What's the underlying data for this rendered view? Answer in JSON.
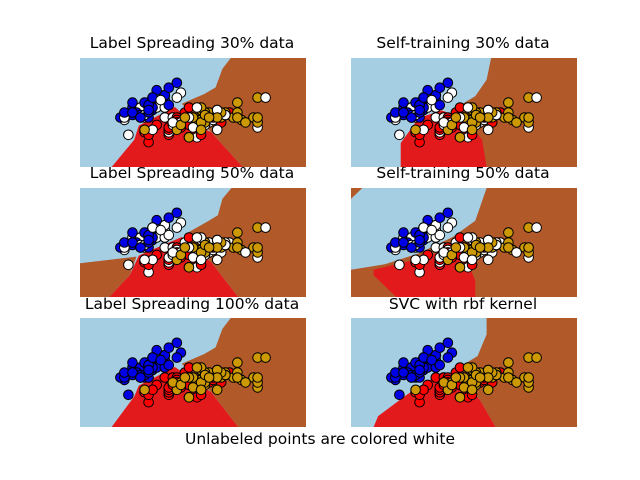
{
  "caption": "Unlabeled points are colored white",
  "colors": {
    "region_0": "#a6cee3",
    "region_1": "#e31a1c",
    "region_2": "#b15928",
    "point_unlabeled": "#ffffff",
    "point_0": "#0000e6",
    "point_1": "#ff0000",
    "point_2": "#cc9900"
  },
  "chart_data": {
    "type": "scatter",
    "xlim": [
      3.3,
      8.9
    ],
    "ylim": [
      1.0,
      5.4
    ],
    "grid": false,
    "axes_visible": false,
    "points": [
      [
        5.1,
        3.5
      ],
      [
        4.9,
        3.0
      ],
      [
        4.7,
        3.2
      ],
      [
        4.6,
        3.1
      ],
      [
        5.0,
        3.6
      ],
      [
        5.4,
        3.9
      ],
      [
        4.6,
        3.4
      ],
      [
        5.0,
        3.4
      ],
      [
        4.4,
        2.9
      ],
      [
        4.9,
        3.1
      ],
      [
        5.4,
        3.7
      ],
      [
        4.8,
        3.4
      ],
      [
        4.8,
        3.0
      ],
      [
        4.3,
        3.0
      ],
      [
        5.8,
        4.0
      ],
      [
        5.7,
        4.4
      ],
      [
        5.4,
        3.9
      ],
      [
        5.1,
        3.5
      ],
      [
        5.7,
        3.8
      ],
      [
        5.1,
        3.8
      ],
      [
        5.4,
        3.4
      ],
      [
        5.1,
        3.7
      ],
      [
        4.6,
        3.6
      ],
      [
        5.1,
        3.3
      ],
      [
        4.8,
        3.4
      ],
      [
        5.0,
        3.0
      ],
      [
        5.0,
        3.4
      ],
      [
        5.2,
        3.5
      ],
      [
        5.2,
        3.4
      ],
      [
        4.7,
        3.2
      ],
      [
        4.8,
        3.1
      ],
      [
        5.4,
        3.4
      ],
      [
        5.2,
        4.1
      ],
      [
        5.5,
        4.2
      ],
      [
        4.9,
        3.1
      ],
      [
        5.0,
        3.2
      ],
      [
        5.5,
        3.5
      ],
      [
        4.9,
        3.6
      ],
      [
        4.4,
        3.0
      ],
      [
        5.1,
        3.4
      ],
      [
        5.0,
        3.5
      ],
      [
        4.5,
        2.3
      ],
      [
        4.4,
        3.2
      ],
      [
        5.0,
        3.5
      ],
      [
        5.1,
        3.8
      ],
      [
        4.8,
        3.0
      ],
      [
        5.1,
        3.8
      ],
      [
        4.6,
        3.2
      ],
      [
        5.3,
        3.7
      ],
      [
        5.0,
        3.3
      ],
      [
        7.0,
        3.2
      ],
      [
        6.4,
        3.2
      ],
      [
        6.9,
        3.1
      ],
      [
        5.5,
        2.3
      ],
      [
        6.5,
        2.8
      ],
      [
        5.7,
        2.8
      ],
      [
        6.3,
        3.3
      ],
      [
        4.9,
        2.4
      ],
      [
        6.6,
        2.9
      ],
      [
        5.2,
        2.7
      ],
      [
        5.0,
        2.0
      ],
      [
        5.9,
        3.0
      ],
      [
        6.0,
        2.2
      ],
      [
        6.1,
        2.9
      ],
      [
        5.6,
        2.9
      ],
      [
        6.7,
        3.1
      ],
      [
        5.6,
        3.0
      ],
      [
        5.8,
        2.7
      ],
      [
        6.2,
        2.2
      ],
      [
        5.6,
        2.5
      ],
      [
        5.9,
        3.2
      ],
      [
        6.1,
        2.8
      ],
      [
        6.3,
        2.5
      ],
      [
        6.1,
        2.8
      ],
      [
        6.4,
        2.9
      ],
      [
        6.6,
        3.0
      ],
      [
        6.8,
        2.8
      ],
      [
        6.7,
        3.0
      ],
      [
        6.0,
        2.9
      ],
      [
        5.7,
        2.6
      ],
      [
        5.5,
        2.4
      ],
      [
        5.5,
        2.4
      ],
      [
        5.8,
        2.7
      ],
      [
        6.0,
        2.7
      ],
      [
        5.4,
        3.0
      ],
      [
        6.0,
        3.4
      ],
      [
        6.7,
        3.1
      ],
      [
        6.3,
        2.3
      ],
      [
        5.6,
        3.0
      ],
      [
        5.5,
        2.5
      ],
      [
        5.5,
        2.6
      ],
      [
        6.1,
        3.0
      ],
      [
        5.8,
        2.6
      ],
      [
        5.0,
        2.3
      ],
      [
        5.6,
        2.7
      ],
      [
        5.7,
        3.0
      ],
      [
        5.7,
        2.9
      ],
      [
        6.2,
        2.9
      ],
      [
        5.1,
        2.5
      ],
      [
        5.7,
        2.8
      ],
      [
        6.3,
        3.3
      ],
      [
        5.8,
        2.7
      ],
      [
        7.1,
        3.0
      ],
      [
        6.3,
        2.9
      ],
      [
        6.5,
        3.0
      ],
      [
        7.6,
        3.0
      ],
      [
        4.9,
        2.5
      ],
      [
        7.3,
        2.9
      ],
      [
        6.7,
        2.5
      ],
      [
        7.2,
        3.6
      ],
      [
        6.5,
        3.2
      ],
      [
        6.4,
        2.7
      ],
      [
        6.8,
        3.0
      ],
      [
        5.7,
        2.5
      ],
      [
        5.8,
        2.8
      ],
      [
        6.4,
        3.2
      ],
      [
        6.5,
        3.0
      ],
      [
        7.7,
        3.8
      ],
      [
        7.7,
        2.6
      ],
      [
        6.0,
        2.2
      ],
      [
        6.9,
        3.2
      ],
      [
        5.6,
        2.8
      ],
      [
        7.7,
        2.8
      ],
      [
        6.3,
        2.7
      ],
      [
        6.7,
        3.3
      ],
      [
        7.2,
        3.2
      ],
      [
        6.2,
        2.8
      ],
      [
        6.1,
        3.0
      ],
      [
        6.4,
        2.8
      ],
      [
        7.2,
        3.0
      ],
      [
        7.4,
        2.8
      ],
      [
        7.9,
        3.8
      ],
      [
        6.4,
        2.8
      ],
      [
        6.3,
        2.8
      ],
      [
        6.1,
        2.6
      ],
      [
        7.7,
        3.0
      ],
      [
        6.3,
        3.4
      ],
      [
        6.4,
        3.1
      ],
      [
        6.0,
        3.0
      ],
      [
        6.9,
        3.1
      ],
      [
        6.7,
        3.1
      ],
      [
        6.9,
        3.1
      ],
      [
        5.8,
        2.7
      ],
      [
        6.8,
        3.2
      ],
      [
        6.7,
        3.3
      ],
      [
        6.7,
        3.0
      ],
      [
        6.3,
        2.5
      ],
      [
        6.5,
        3.0
      ],
      [
        6.2,
        3.4
      ],
      [
        5.9,
        3.0
      ]
    ],
    "labels_legend": "0, 1, 2 = classes; - = unlabeled",
    "subplots": [
      {
        "title": "Label Spreading 30% data",
        "labels": "0-00-000-00-00-000-00-00-000-00-00-000-00-00-000-01-11-111-11-11-111-11-11-111-11-11-111-11-11-111-12-22-222-22-22-222-22-22-222-22-22-222-22-22-222-2"
      },
      {
        "title": "Self-training 30% data",
        "labels": "0-00-000-00-00-000-00-00-000-00-00-000-00-00-000-01-11-111-11-11-111-11-11-111-11-11-111-11-11-111-12-22-222-22-22-222-22-22-222-22-22-222-22-22-222-2"
      },
      {
        "title": "Label Spreading 50% data",
        "labels": "--00-0-0-0--00-0-0-0--00-0-0-0--00-0-0-0--00-0-0-0--11-1-1-1--11-1-1-1--11-1-1-1--11-1-1-1--11-1-1-1--22-2-2-2--22-2-2-2--22-2-2-2--22-2-2-2--22-2-2-2"
      },
      {
        "title": "Self-training 50% data",
        "labels": "--00-0-0-0--00-0-0-0--00-0-0-0--00-0-0-0--00-0-0-0--11-1-1-1--11-1-1-1--11-1-1-1--11-1-1-1--11-1-1-1--22-2-2-2--22-2-2-2--22-2-2-2--22-2-2-2--22-2-2-2"
      },
      {
        "title": "Label Spreading 100% data",
        "labels": "000000000000000000000000000000000000000000000000001111111111111111111111111111111111111111111111111122222222222222222222222222222222222222222222222222"
      },
      {
        "title": "SVC with rbf kernel",
        "labels": "000000000000000000000000000000000000000000000000001111111111111111111111111111111111111111111111111122222222222222222222222222222222222222222222222222"
      }
    ]
  }
}
